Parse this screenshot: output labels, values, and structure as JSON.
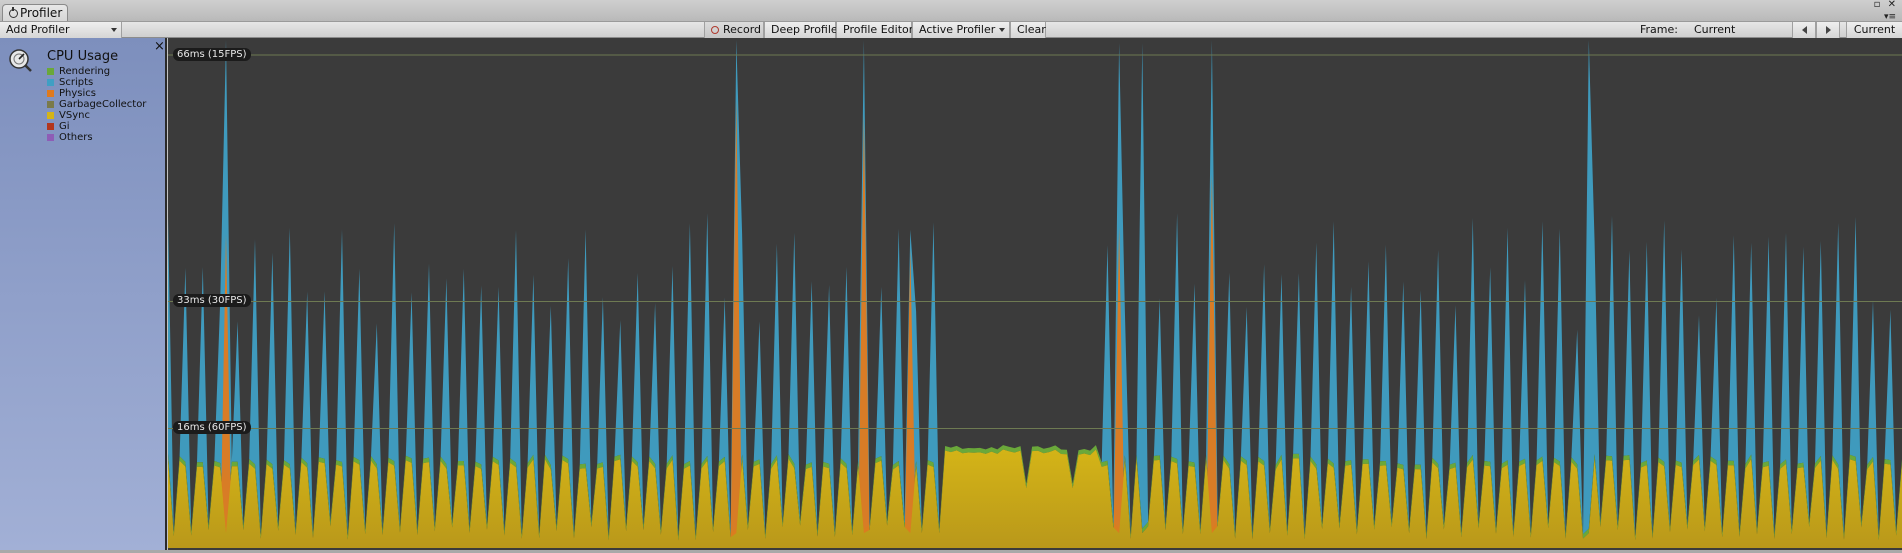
{
  "window": {
    "tab_title": "Profiler",
    "controls": {
      "max": "▫",
      "close": "✕",
      "menu": "▾≡"
    }
  },
  "toolbar": {
    "add_profiler": "Add Profiler",
    "record": "Record",
    "deep_profile": "Deep Profile",
    "profile_editor": "Profile Editor",
    "active_profiler": "Active Profiler",
    "clear": "Clear",
    "frame_label": "Frame:",
    "frame_value": "Current",
    "current": "Current"
  },
  "module": {
    "title": "CPU Usage",
    "close": "×",
    "legend": [
      {
        "name": "Rendering",
        "color": "#6aa83a"
      },
      {
        "name": "Scripts",
        "color": "#3f9fc4"
      },
      {
        "name": "Physics",
        "color": "#e07a1e"
      },
      {
        "name": "GarbageCollector",
        "color": "#7a7a4a"
      },
      {
        "name": "VSync",
        "color": "#d4b417"
      },
      {
        "name": "Gi",
        "color": "#b3361d"
      },
      {
        "name": "Others",
        "color": "#8e5db6"
      }
    ]
  },
  "chart_data": {
    "type": "area",
    "thresholds": [
      {
        "label": "66ms (15FPS)",
        "ms": 66
      },
      {
        "label": "33ms (30FPS)",
        "ms": 33
      },
      {
        "label": "16ms (60FPS)",
        "ms": 16
      }
    ],
    "ylim": [
      0,
      68
    ],
    "frames": 300,
    "vsync_level_ms": 12,
    "rendering_band_ms": 0.6,
    "spikes": [
      {
        "frame": 10,
        "scripts_ms": 70,
        "physics_ms": 42
      },
      {
        "frame": 98,
        "scripts_ms": 68,
        "physics_ms": 60
      },
      {
        "frame": 120,
        "scripts_ms": 68,
        "physics_ms": 58
      },
      {
        "frame": 128,
        "scripts_ms": 40,
        "physics_ms": 40
      },
      {
        "frame": 164,
        "scripts_ms": 65,
        "physics_ms": 43
      },
      {
        "frame": 168,
        "scripts_ms": 65,
        "physics_ms": 0
      },
      {
        "frame": 180,
        "scripts_ms": 68,
        "physics_ms": 50
      },
      {
        "frame": 245,
        "scripts_ms": 68,
        "physics_ms": 0
      }
    ],
    "plateau": {
      "start_frame": 134,
      "end_frame": 160,
      "vsync_ms": 13.2
    },
    "spike_every": 3,
    "typical_scripts_ms": 30
  },
  "colors": {
    "scripts": "#3f9fc4",
    "physics": "#e07a1e",
    "vsync": "#d4b417",
    "vsync_dark": "#b9981a",
    "rendering": "#6aa83a",
    "threshold_line": "#6e7a52"
  }
}
